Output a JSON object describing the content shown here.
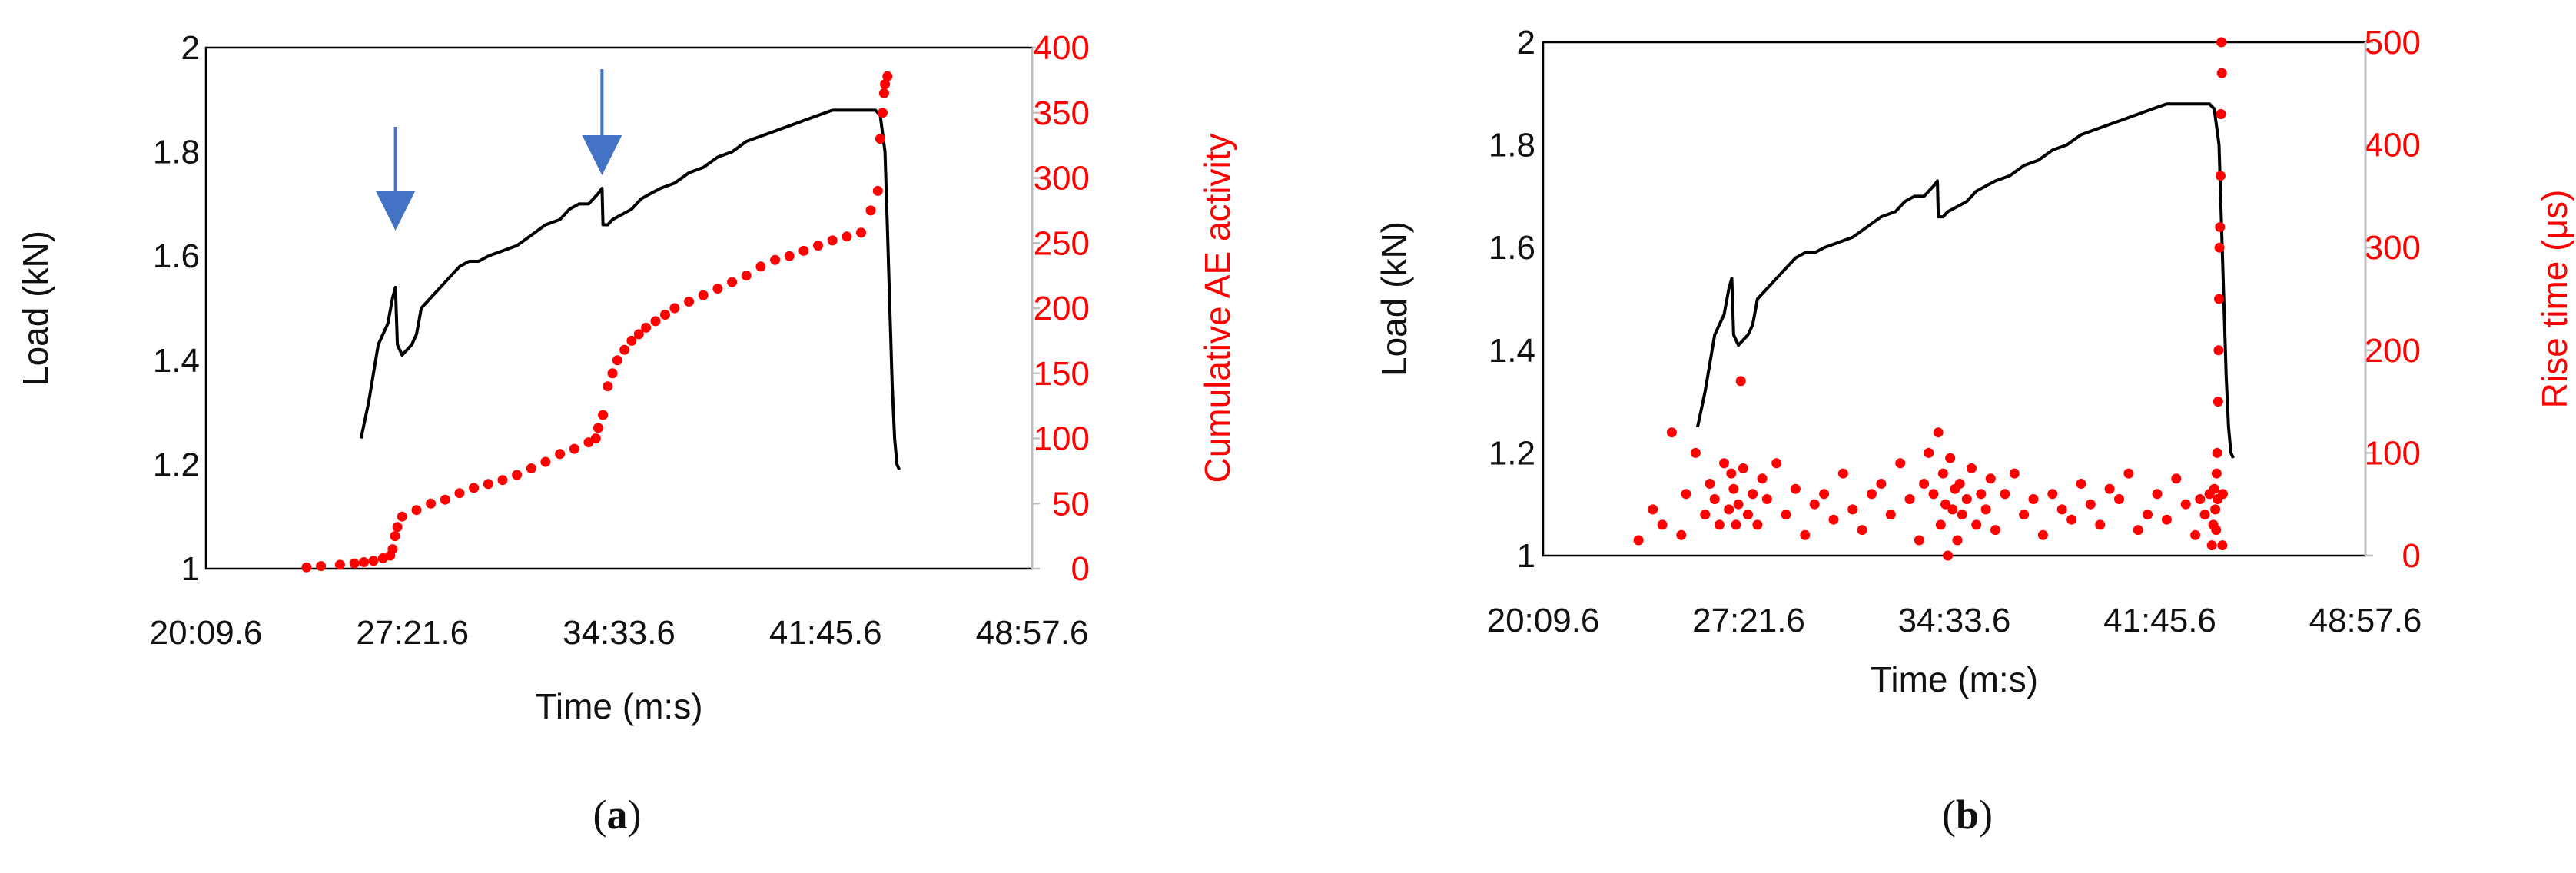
{
  "chart_data": [
    {
      "type": "line",
      "panel_label": "a",
      "xlabel": "Time (m:s)",
      "ylabel": "Load  (kN)",
      "y2label": "Cumulative AE activity",
      "x_ticks": [
        "20:09.6",
        "27:21.6",
        "34:33.6",
        "41:45.6",
        "48:57.6"
      ],
      "xlim": [
        "20:09.6",
        "48:57.6"
      ],
      "ylim": [
        1,
        2
      ],
      "y_ticks": [
        "1",
        "1.2",
        "1.4",
        "1.6",
        "1.8",
        "2"
      ],
      "y2lim": [
        0,
        400
      ],
      "y2_ticks": [
        "0",
        "50",
        "100",
        "150",
        "200",
        "250",
        "300",
        "350",
        "400"
      ],
      "grid": false,
      "colors": {
        "load": "#000000",
        "ae": "#ff0000",
        "arrow": "#4472c4"
      },
      "arrows_at": [
        "26:46",
        "33:58"
      ],
      "series": [
        {
          "axis": "left",
          "style": "line",
          "x": [
            "25:34",
            "25:50",
            "26:10",
            "26:30",
            "26:40",
            "26:46",
            "26:50",
            "27:00",
            "27:20",
            "27:30",
            "27:40",
            "28:00",
            "28:20",
            "28:40",
            "29:00",
            "29:20",
            "29:40",
            "30:00",
            "30:30",
            "31:00",
            "31:30",
            "32:00",
            "32:30",
            "32:50",
            "33:10",
            "33:30",
            "33:50",
            "33:58",
            "34:00",
            "34:10",
            "34:20",
            "34:40",
            "35:00",
            "35:20",
            "35:40",
            "36:00",
            "36:30",
            "37:00",
            "37:30",
            "38:00",
            "38:30",
            "39:00",
            "39:30",
            "40:00",
            "40:30",
            "41:00",
            "41:30",
            "42:00",
            "42:30",
            "43:00",
            "43:30",
            "43:40",
            "43:50",
            "43:55",
            "44:00",
            "44:05",
            "44:10",
            "44:15",
            "44:20"
          ],
          "y": [
            1.25,
            1.32,
            1.43,
            1.47,
            1.52,
            1.54,
            1.43,
            1.41,
            1.43,
            1.45,
            1.5,
            1.52,
            1.54,
            1.56,
            1.58,
            1.59,
            1.59,
            1.6,
            1.61,
            1.62,
            1.64,
            1.66,
            1.67,
            1.69,
            1.7,
            1.7,
            1.72,
            1.73,
            1.66,
            1.66,
            1.67,
            1.68,
            1.69,
            1.71,
            1.72,
            1.73,
            1.74,
            1.76,
            1.77,
            1.79,
            1.8,
            1.82,
            1.83,
            1.84,
            1.85,
            1.86,
            1.87,
            1.88,
            1.88,
            1.88,
            1.88,
            1.87,
            1.8,
            1.65,
            1.5,
            1.35,
            1.25,
            1.2,
            1.19
          ]
        },
        {
          "axis": "right",
          "style": "points",
          "x": [
            "23:40",
            "24:10",
            "24:50",
            "25:20",
            "25:40",
            "26:00",
            "26:20",
            "26:35",
            "26:40",
            "26:45",
            "26:50",
            "27:00",
            "27:30",
            "28:00",
            "28:30",
            "29:00",
            "29:30",
            "30:00",
            "30:30",
            "31:00",
            "31:30",
            "32:00",
            "32:30",
            "33:00",
            "33:30",
            "33:45",
            "33:50",
            "34:00",
            "34:10",
            "34:20",
            "34:30",
            "34:45",
            "35:00",
            "35:15",
            "35:30",
            "35:50",
            "36:10",
            "36:30",
            "37:00",
            "37:30",
            "38:00",
            "38:30",
            "39:00",
            "39:30",
            "40:00",
            "40:30",
            "41:00",
            "41:30",
            "42:00",
            "42:30",
            "43:00",
            "43:20",
            "43:35",
            "43:40",
            "43:45",
            "43:48",
            "43:50",
            "43:55"
          ],
          "y": [
            1,
            2,
            3,
            4,
            5,
            6,
            8,
            10,
            15,
            25,
            32,
            40,
            45,
            50,
            53,
            58,
            62,
            65,
            68,
            72,
            77,
            82,
            88,
            92,
            97,
            100,
            108,
            118,
            140,
            150,
            160,
            168,
            175,
            180,
            185,
            190,
            195,
            200,
            205,
            210,
            215,
            220,
            225,
            232,
            237,
            240,
            244,
            248,
            252,
            255,
            258,
            275,
            290,
            330,
            350,
            365,
            372,
            378
          ]
        }
      ]
    },
    {
      "type": "line",
      "panel_label": "b",
      "xlabel": "Time (m:s)",
      "ylabel": "Load  (kN)",
      "y2label": "Rise time (μs)",
      "x_ticks": [
        "20:09.6",
        "27:21.6",
        "34:33.6",
        "41:45.6",
        "48:57.6"
      ],
      "xlim": [
        "20:09.6",
        "48:57.6"
      ],
      "ylim": [
        1,
        2
      ],
      "y_ticks": [
        "1",
        "1.2",
        "1.4",
        "1.6",
        "1.8",
        "2"
      ],
      "y2lim": [
        0,
        500
      ],
      "y2_ticks": [
        "0",
        "100",
        "200",
        "300",
        "400",
        "500"
      ],
      "grid": false,
      "colors": {
        "load": "#000000",
        "rise": "#ff0000"
      },
      "series": [
        {
          "axis": "left",
          "style": "line",
          "x": [
            "25:34",
            "25:50",
            "26:10",
            "26:30",
            "26:40",
            "26:46",
            "26:50",
            "27:00",
            "27:20",
            "27:30",
            "27:40",
            "28:00",
            "28:20",
            "28:40",
            "29:00",
            "29:20",
            "29:40",
            "30:00",
            "30:30",
            "31:00",
            "31:30",
            "32:00",
            "32:30",
            "32:50",
            "33:10",
            "33:30",
            "33:50",
            "33:58",
            "34:00",
            "34:10",
            "34:20",
            "34:40",
            "35:00",
            "35:20",
            "35:40",
            "36:00",
            "36:30",
            "37:00",
            "37:30",
            "38:00",
            "38:30",
            "39:00",
            "39:30",
            "40:00",
            "40:30",
            "41:00",
            "41:30",
            "42:00",
            "42:30",
            "43:00",
            "43:30",
            "43:40",
            "43:50",
            "43:55",
            "44:00",
            "44:05",
            "44:10",
            "44:15",
            "44:20"
          ],
          "y": [
            1.25,
            1.32,
            1.43,
            1.47,
            1.52,
            1.54,
            1.43,
            1.41,
            1.43,
            1.45,
            1.5,
            1.52,
            1.54,
            1.56,
            1.58,
            1.59,
            1.59,
            1.6,
            1.61,
            1.62,
            1.64,
            1.66,
            1.67,
            1.69,
            1.7,
            1.7,
            1.72,
            1.73,
            1.66,
            1.66,
            1.67,
            1.68,
            1.69,
            1.71,
            1.72,
            1.73,
            1.74,
            1.76,
            1.77,
            1.79,
            1.8,
            1.82,
            1.83,
            1.84,
            1.85,
            1.86,
            1.87,
            1.88,
            1.88,
            1.88,
            1.88,
            1.87,
            1.8,
            1.65,
            1.5,
            1.35,
            1.25,
            1.2,
            1.19
          ]
        },
        {
          "axis": "right",
          "style": "points",
          "x": [
            "23:30",
            "24:00",
            "24:20",
            "24:40",
            "25:00",
            "25:10",
            "25:30",
            "25:50",
            "26:00",
            "26:10",
            "26:20",
            "26:30",
            "26:40",
            "26:45",
            "26:50",
            "26:55",
            "27:00",
            "27:05",
            "27:10",
            "27:20",
            "27:30",
            "27:40",
            "27:50",
            "28:00",
            "28:20",
            "28:40",
            "29:00",
            "29:20",
            "29:40",
            "30:00",
            "30:20",
            "30:40",
            "31:00",
            "31:20",
            "31:40",
            "32:00",
            "32:20",
            "32:40",
            "33:00",
            "33:20",
            "33:30",
            "33:40",
            "33:50",
            "34:00",
            "34:05",
            "34:10",
            "34:15",
            "34:20",
            "34:25",
            "34:30",
            "34:35",
            "34:40",
            "34:45",
            "34:50",
            "35:00",
            "35:10",
            "35:20",
            "35:30",
            "35:40",
            "35:50",
            "36:00",
            "36:20",
            "36:40",
            "37:00",
            "37:20",
            "37:40",
            "38:00",
            "38:20",
            "38:40",
            "39:00",
            "39:20",
            "39:40",
            "40:00",
            "40:20",
            "40:40",
            "41:00",
            "41:20",
            "41:40",
            "42:00",
            "42:20",
            "42:40",
            "43:00",
            "43:10",
            "43:20",
            "43:30",
            "43:35",
            "43:38",
            "43:40",
            "43:42",
            "43:44",
            "43:45",
            "43:46",
            "43:47",
            "43:48",
            "43:49",
            "43:50",
            "43:51",
            "43:52",
            "43:53",
            "43:54",
            "43:55",
            "43:56",
            "43:57",
            "43:58"
          ],
          "y": [
            15,
            45,
            30,
            120,
            20,
            60,
            100,
            40,
            70,
            55,
            30,
            90,
            45,
            80,
            65,
            30,
            50,
            170,
            85,
            40,
            60,
            30,
            75,
            55,
            90,
            40,
            65,
            20,
            50,
            60,
            35,
            80,
            45,
            25,
            60,
            70,
            40,
            90,
            55,
            15,
            70,
            100,
            60,
            120,
            30,
            80,
            50,
            0,
            95,
            45,
            65,
            15,
            70,
            40,
            55,
            85,
            30,
            60,
            45,
            75,
            25,
            60,
            80,
            40,
            55,
            20,
            60,
            45,
            35,
            70,
            50,
            30,
            65,
            55,
            80,
            25,
            40,
            60,
            35,
            75,
            50,
            20,
            55,
            40,
            60,
            10,
            30,
            65,
            45,
            25,
            80,
            100,
            55,
            150,
            200,
            250,
            300,
            320,
            370,
            430,
            500,
            470,
            10,
            60
          ]
        }
      ]
    }
  ]
}
